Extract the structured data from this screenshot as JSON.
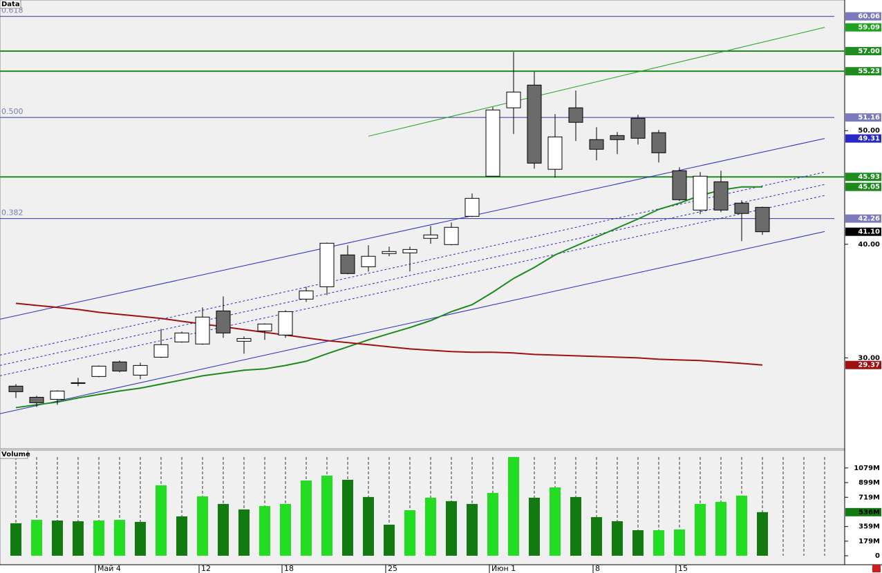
{
  "chart_data": {
    "type": "candlestick",
    "panel_title": "Data",
    "categories": [
      null,
      null,
      null,
      null,
      "Май 4",
      null,
      null,
      null,
      null,
      "12",
      null,
      null,
      null,
      "18",
      null,
      null,
      null,
      null,
      "25",
      null,
      null,
      null,
      null,
      "Июн 1",
      null,
      null,
      null,
      null,
      "8",
      null,
      null,
      null,
      "15",
      null,
      null,
      null,
      null,
      null,
      null,
      null
    ],
    "open": [
      27.51,
      26.53,
      26.35,
      27.81,
      28.36,
      29.64,
      28.48,
      30.06,
      31.4,
      31.22,
      34.13,
      31.46,
      32.37,
      32.01,
      35.17,
      36.26,
      39.06,
      38.02,
      39.18,
      39.24,
      40.52,
      39.97,
      42.46,
      45.99,
      52.01,
      54.01,
      46.6,
      52.01,
      49.21,
      49.57,
      51.09,
      49.82,
      46.47,
      43.01,
      45.5,
      43.62,
      43.25,
      null,
      null,
      null
    ],
    "high": [
      27.69,
      26.66,
      27.14,
      28.24,
      29.33,
      29.76,
      29.57,
      32.55,
      32.31,
      34.44,
      35.41,
      31.88,
      33.04,
      34.19,
      36.26,
      40.15,
      39.91,
      39.91,
      39.79,
      39.79,
      41.61,
      41.91,
      44.47,
      52.07,
      56.93,
      55.17,
      51.46,
      53.53,
      50.3,
      49.88,
      51.4,
      50.06,
      46.78,
      46.35,
      46.47,
      43.86,
      43.31,
      null,
      null,
      null
    ],
    "low": [
      26.47,
      25.68,
      25.87,
      27.51,
      28.3,
      28.72,
      28.12,
      30.0,
      31.34,
      31.16,
      31.76,
      30.36,
      31.58,
      31.76,
      34.92,
      35.53,
      37.36,
      37.6,
      38.94,
      37.6,
      40.03,
      39.91,
      42.4,
      45.99,
      49.7,
      46.66,
      45.87,
      49.09,
      47.39,
      47.93,
      48.78,
      47.2,
      43.8,
      42.64,
      42.83,
      40.27,
      40.82,
      null,
      null,
      null
    ],
    "close": [
      27.02,
      26.05,
      27.08,
      27.81,
      29.27,
      28.84,
      29.33,
      31.16,
      32.19,
      33.59,
      32.19,
      31.7,
      32.98,
      34.07,
      35.9,
      40.09,
      37.42,
      38.94,
      39.36,
      39.54,
      40.82,
      41.49,
      44.04,
      51.82,
      53.4,
      47.14,
      49.45,
      50.73,
      48.36,
      49.21,
      49.33,
      48.05,
      43.92,
      45.99,
      43.01,
      42.71,
      41.1,
      null,
      null,
      null
    ],
    "up_color": "#ffffff",
    "down_color": "#6b6b6b",
    "last_close_label": "41.10",
    "ylim": [
      22,
      61.5
    ],
    "yticks": [
      {
        "value": 30,
        "label": "30.00"
      },
      {
        "value": 40,
        "label": "40.00"
      },
      {
        "value": 50,
        "label": "50.00"
      }
    ],
    "moving_averages": [
      {
        "color": "#1a8a1a",
        "values": [
          25.62,
          25.87,
          26.11,
          26.47,
          26.78,
          27.08,
          27.33,
          27.69,
          28.05,
          28.42,
          28.66,
          28.91,
          29.03,
          29.33,
          29.7,
          30.36,
          30.97,
          31.58,
          32.13,
          32.67,
          33.28,
          34.07,
          34.68,
          35.78,
          36.99,
          37.96,
          39.06,
          39.85,
          40.64,
          41.43,
          42.22,
          43.07,
          43.62,
          44.29,
          44.77,
          45.05,
          45.05,
          null,
          null,
          null
        ]
      },
      {
        "color": "#a01010",
        "values": [
          34.8,
          34.62,
          34.44,
          34.26,
          34.01,
          33.83,
          33.65,
          33.47,
          33.22,
          32.98,
          32.74,
          32.49,
          32.25,
          32.01,
          31.76,
          31.52,
          31.34,
          31.16,
          30.97,
          30.79,
          30.67,
          30.55,
          30.49,
          30.49,
          30.43,
          30.3,
          30.24,
          30.18,
          30.12,
          30.06,
          30.0,
          29.88,
          29.82,
          29.76,
          29.64,
          29.51,
          29.37,
          null,
          null,
          null
        ]
      }
    ],
    "trend_lines": [
      {
        "color": "#22a022",
        "x": [
          17,
          39
        ],
        "y": [
          49.51,
          59.09
        ],
        "dashed": false,
        "end_label": true
      },
      {
        "color": "#2828c8",
        "x": [
          -0.77,
          39
        ],
        "y": [
          33.4,
          49.31
        ],
        "dashed": false,
        "end_label": true
      },
      {
        "color": "#2828c8",
        "x": [
          -0.77,
          39
        ],
        "y": [
          25.08,
          41.12
        ],
        "dashed": false,
        "end_label": false
      },
      {
        "color": "#2828c8",
        "x": [
          -0.77,
          39
        ],
        "y": [
          30.24,
          46.35
        ],
        "dashed": true,
        "end_label": false
      },
      {
        "color": "#2828c8",
        "x": [
          -0.77,
          39
        ],
        "y": [
          29.33,
          45.26
        ],
        "dashed": true,
        "end_label": false
      },
      {
        "color": "#2828c8",
        "x": [
          -0.77,
          39
        ],
        "y": [
          28.42,
          44.29
        ],
        "dashed": true,
        "end_label": false
      }
    ],
    "fib_levels": {
      "color": "#3333aa",
      "box_color": "#7b7bbb",
      "values": [
        60.06,
        51.16,
        42.26
      ],
      "labels": [
        "0.618",
        "0.500",
        "0.382"
      ]
    },
    "levels": {
      "color": "#1e8c1e",
      "values": [
        57,
        55.23,
        45.93
      ],
      "value_labels": [
        "57.00",
        "55.23",
        "45.93"
      ]
    },
    "volume": {
      "type": "bar",
      "panel_title": "Volume",
      "values": [
        399,
        441,
        433,
        424,
        433,
        441,
        416,
        866,
        484,
        730,
        637,
        569,
        611,
        637,
        925,
        985,
        934,
        722,
        382,
        560,
        713,
        671,
        637,
        772,
        1214,
        713,
        840,
        722,
        475,
        424,
        314,
        314,
        323,
        637,
        662,
        739,
        536,
        null,
        null,
        null
      ],
      "colors": [
        "#117a11",
        "#22dd22",
        "#117a11",
        "#117a11",
        "#22dd22",
        "#22dd22",
        "#117a11",
        "#22dd22",
        "#117a11",
        "#22dd22",
        "#117a11",
        "#117a11",
        "#22dd22",
        "#22dd22",
        "#22dd22",
        "#22dd22",
        "#117a11",
        "#117a11",
        "#117a11",
        "#22dd22",
        "#22dd22",
        "#117a11",
        "#117a11",
        "#22dd22",
        "#22dd22",
        "#117a11",
        "#22dd22",
        "#117a11",
        "#117a11",
        "#117a11",
        "#117a11",
        "#22dd22",
        "#22dd22",
        "#22dd22",
        "#22dd22",
        "#22dd22",
        "#117a11",
        null,
        null,
        null
      ],
      "ylim": [
        0,
        1273
      ],
      "yticks": [
        0,
        {
          "value": 179,
          "label": "179M"
        },
        {
          "value": 359,
          "label": "359M"
        },
        {
          "value": 719,
          "label": "719M"
        },
        {
          "value": 899,
          "label": "899M"
        },
        {
          "value": 1079,
          "label": "1079M"
        }
      ],
      "last_label": "536M"
    }
  }
}
